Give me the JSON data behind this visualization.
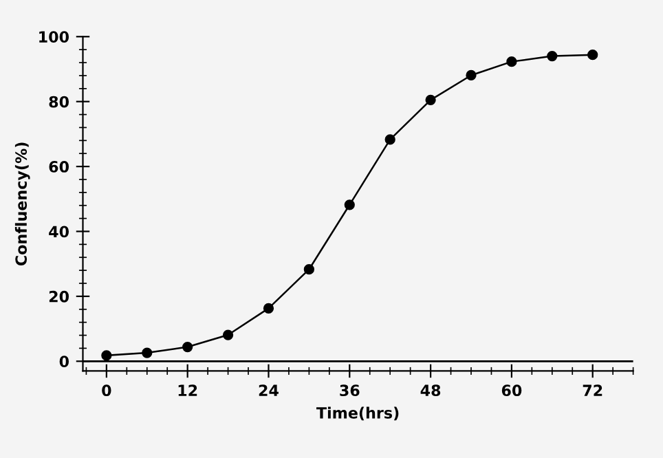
{
  "chart_data": {
    "type": "line",
    "xlabel": "Time(hrs)",
    "ylabel": "Confluency(%)",
    "x": [
      0,
      6,
      12,
      18,
      24,
      30,
      36,
      42,
      48,
      54,
      60,
      66,
      72
    ],
    "series": [
      {
        "color": "#000000",
        "values": [
          1.8,
          2.6,
          4.4,
          8.1,
          16.3,
          28.3,
          48.2,
          68.3,
          80.5,
          88.1,
          92.3,
          94.0,
          94.4
        ]
      }
    ],
    "xlim": [
      -3.5,
      78
    ],
    "ylim": [
      -3,
      100
    ],
    "xticks": [
      0,
      12,
      24,
      36,
      48,
      60,
      72
    ],
    "yticks": [
      0,
      20,
      40,
      60,
      80,
      100
    ],
    "ref_lines": [
      {
        "axis": "y",
        "value": 0,
        "color": "#000000"
      }
    ],
    "marker": "circle",
    "line_style": "solid",
    "grid": false
  }
}
